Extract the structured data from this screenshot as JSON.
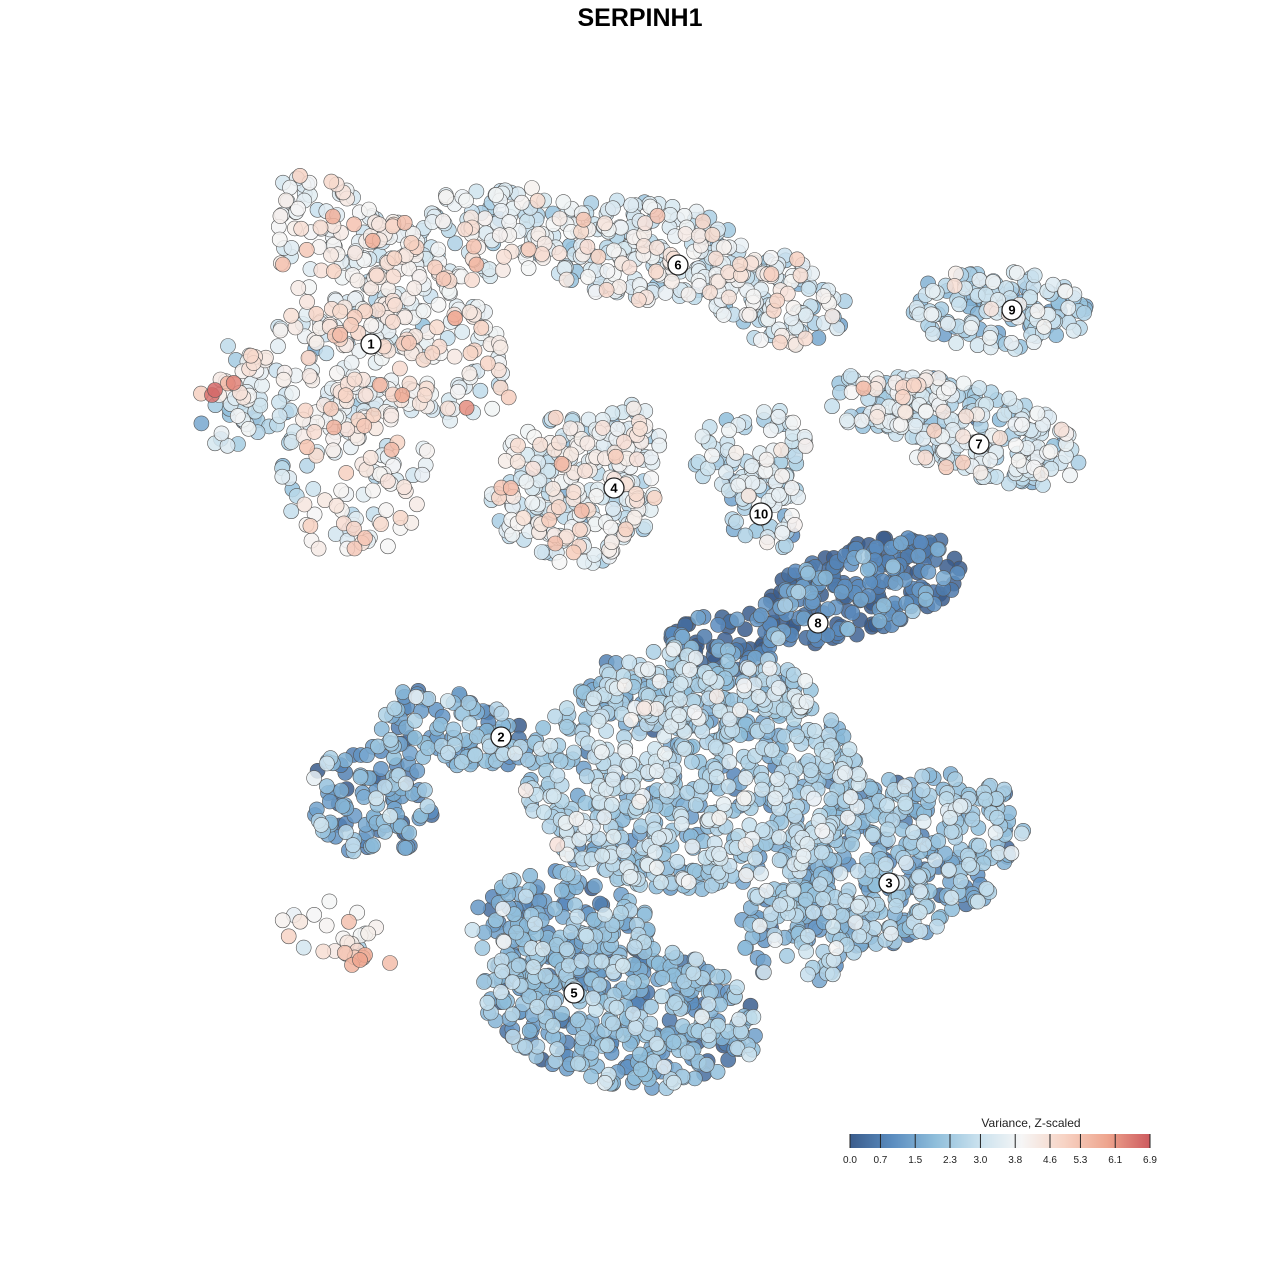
{
  "chart_data": {
    "type": "scatter",
    "title": "SERPINH1",
    "xlabel": "",
    "ylabel": "",
    "grid": false,
    "colorbar": {
      "title": "Variance, Z-scaled",
      "placement": "bottom-right",
      "min": 0.0,
      "max": 6.9,
      "ticks": [
        "0.0",
        "0.7",
        "1.5",
        "2.3",
        "3.0",
        "3.8",
        "4.6",
        "5.3",
        "6.1",
        "6.9"
      ],
      "colors": [
        "#3a5c8c",
        "#5b8dc0",
        "#8fbedb",
        "#c9e1ee",
        "#f6f6f6",
        "#f7d3c4",
        "#eea58e",
        "#cd5a5e"
      ]
    },
    "clusters": [
      {
        "label": "1",
        "mean_value": 3.9
      },
      {
        "label": "2",
        "mean_value": 1.6
      },
      {
        "label": "3",
        "mean_value": 2.0
      },
      {
        "label": "4",
        "mean_value": 3.6
      },
      {
        "label": "5",
        "mean_value": 1.7
      },
      {
        "label": "6",
        "mean_value": 3.4
      },
      {
        "label": "7",
        "mean_value": 3.1
      },
      {
        "label": "8",
        "mean_value": 0.5
      },
      {
        "label": "9",
        "mean_value": 2.5
      },
      {
        "label": "10",
        "mean_value": 2.8
      }
    ]
  }
}
